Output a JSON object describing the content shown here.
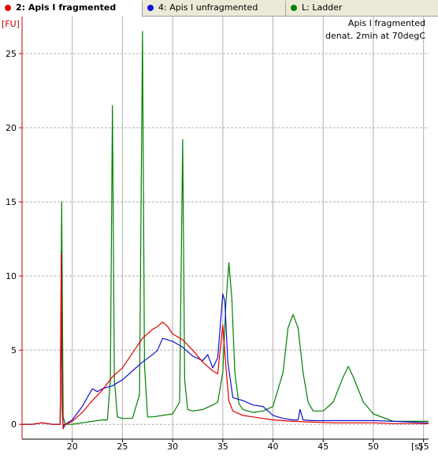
{
  "tabs": [
    {
      "label": "2: Apis I fragmented",
      "color": "#e00000",
      "active": true
    },
    {
      "label": "4: Apis I unfragmented",
      "color": "#1010e0",
      "active": false
    },
    {
      "label": "L: Ladder",
      "color": "#008000",
      "active": false
    }
  ],
  "colors": {
    "axis": "#c00000",
    "grid": "#b0b0b0",
    "sample_fragmented": "#e00000",
    "sample_unfragmented": "#1010d0",
    "ladder": "#008000"
  },
  "annotation": {
    "line1": "Apis I fragmented",
    "line2": "denat. 2min at 70degC"
  },
  "chart_data": {
    "type": "line",
    "title": "",
    "xlabel": "[s]",
    "ylabel": "[FU]",
    "xlim": [
      15,
      55.5
    ],
    "ylim": [
      -1,
      27.5
    ],
    "xticks": [
      20,
      25,
      30,
      35,
      40,
      45,
      50,
      55
    ],
    "yticks": [
      0,
      5,
      10,
      15,
      20,
      25
    ],
    "grid": true,
    "series": [
      {
        "name": "2: Apis I fragmented",
        "color": "#e00000",
        "x": [
          15,
          16,
          17,
          18,
          18.8,
          18.9,
          19.0,
          19.1,
          19.2,
          19.4,
          20,
          21,
          22,
          23,
          24,
          25,
          26,
          27,
          28,
          28.5,
          29,
          29.5,
          30,
          31,
          32,
          33,
          34,
          34.5,
          35,
          35.3,
          35.6,
          36,
          37,
          38,
          40,
          42,
          44,
          46,
          48,
          50,
          52,
          55.5
        ],
        "y": [
          0,
          0,
          0.1,
          0,
          0,
          11.5,
          1,
          -0.3,
          0,
          0,
          0.2,
          0.8,
          1.6,
          2.3,
          3.2,
          3.8,
          4.8,
          5.8,
          6.4,
          6.6,
          6.9,
          6.6,
          6.1,
          5.7,
          5.0,
          4.2,
          3.6,
          3.4,
          6.7,
          4.0,
          1.6,
          0.9,
          0.6,
          0.5,
          0.3,
          0.2,
          0.15,
          0.1,
          0.1,
          0.1,
          0.05,
          0.05
        ]
      },
      {
        "name": "4: Apis I unfragmented",
        "color": "#1010d0",
        "x": [
          15,
          16,
          17,
          18,
          18.8,
          18.9,
          19.0,
          19.1,
          19.3,
          20,
          21,
          22,
          22.5,
          23,
          24,
          25,
          26,
          27,
          28,
          28.5,
          29,
          30,
          31,
          32,
          33,
          33.5,
          34,
          34.5,
          35,
          35.2,
          35.5,
          36,
          37,
          38,
          39,
          40,
          41,
          42,
          42.5,
          42.7,
          43,
          44,
          46,
          48,
          50,
          52,
          55.5
        ],
        "y": [
          0,
          0,
          0.1,
          0,
          0,
          8.5,
          1,
          -0.3,
          0,
          0.3,
          1.2,
          2.4,
          2.2,
          2.4,
          2.6,
          3.0,
          3.6,
          4.2,
          4.7,
          5.0,
          5.8,
          5.6,
          5.2,
          4.6,
          4.3,
          4.7,
          3.8,
          4.5,
          8.8,
          8.3,
          4.2,
          1.8,
          1.6,
          1.3,
          1.2,
          0.6,
          0.4,
          0.3,
          0.3,
          1.0,
          0.3,
          0.25,
          0.25,
          0.25,
          0.25,
          0.2,
          0.1
        ]
      },
      {
        "name": "L: Ladder",
        "color": "#008000",
        "x": [
          15,
          16,
          17,
          18,
          18.8,
          18.95,
          19.1,
          19.3,
          20,
          21,
          22,
          23,
          23.5,
          23.8,
          24.0,
          24.2,
          24.5,
          25,
          26,
          26.7,
          27.0,
          27.2,
          27.5,
          28,
          29,
          30,
          30.7,
          31.0,
          31.2,
          31.5,
          32,
          33,
          34,
          34.5,
          35,
          35.3,
          35.6,
          35.9,
          36.2,
          36.6,
          37,
          38,
          39,
          40,
          41,
          41.5,
          42.0,
          42.5,
          43,
          43.5,
          44,
          45,
          46,
          47,
          47.5,
          48,
          49,
          50,
          52,
          55.5
        ],
        "y": [
          0,
          0,
          0.1,
          0,
          0,
          15,
          0.5,
          0,
          0,
          0.1,
          0.2,
          0.3,
          0.3,
          3,
          21.5,
          3,
          0.5,
          0.4,
          0.4,
          2,
          26.5,
          4,
          0.5,
          0.5,
          0.6,
          0.7,
          1.5,
          19.2,
          3,
          1,
          0.9,
          1.0,
          1.3,
          1.5,
          3.5,
          8.0,
          10.9,
          8.5,
          3.5,
          1.4,
          1.0,
          0.8,
          0.9,
          1.2,
          3.5,
          6.5,
          7.4,
          6.5,
          3.5,
          1.5,
          0.9,
          0.9,
          1.5,
          3.2,
          3.9,
          3.2,
          1.5,
          0.7,
          0.2,
          0.2
        ]
      }
    ]
  }
}
